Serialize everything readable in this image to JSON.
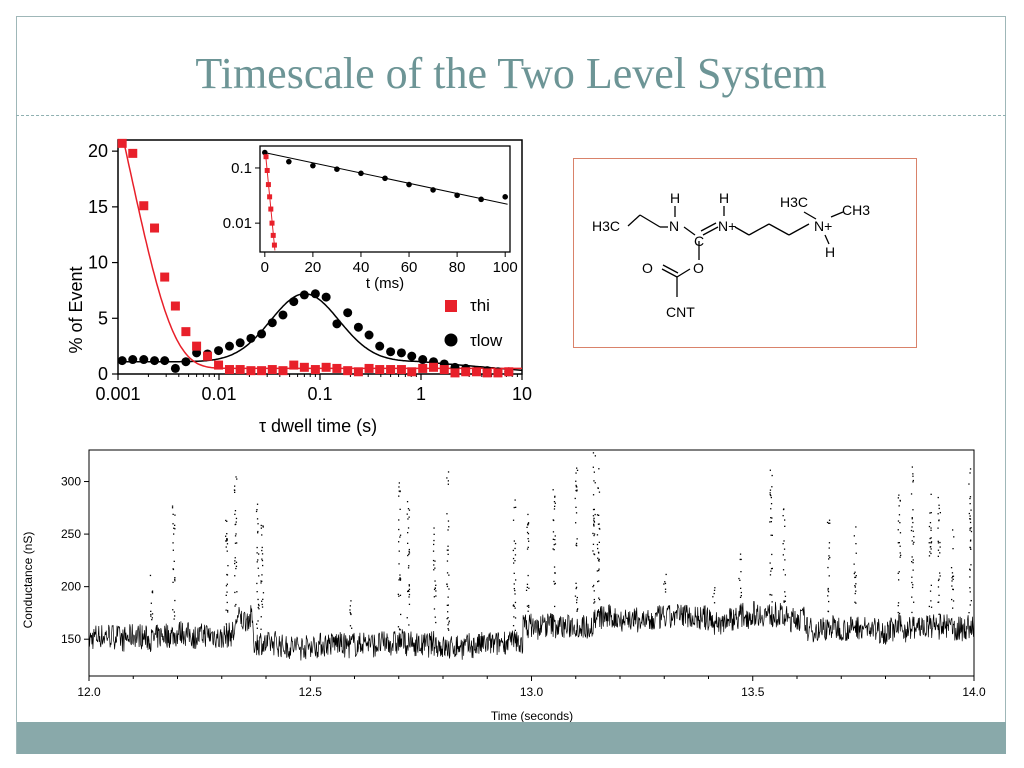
{
  "slide": {
    "title": "Timescale of the Two Level System"
  },
  "colors": {
    "title": "#6d9596",
    "footer": "#89a9aa",
    "tau_hi": "#e8202a",
    "tau_low": "#000000",
    "molecule_border": "#d9826a"
  },
  "molecule": {
    "labels": [
      "H",
      "H3C",
      "N",
      "C",
      "H",
      "N+",
      "H3C",
      "CH3",
      "N+",
      "H",
      "O",
      "O",
      "CNT"
    ]
  },
  "chart_data": [
    {
      "type": "scatter",
      "id": "dwell-histogram",
      "xlabel": "τ dwell time (s)",
      "ylabel": "% of Event",
      "xscale": "log",
      "xlim": [
        0.001,
        10
      ],
      "ylim": [
        0,
        21
      ],
      "xticks": [
        "0.001",
        "0.01",
        "0.1",
        "1",
        "10"
      ],
      "yticks": [
        "0",
        "5",
        "10",
        "15",
        "20"
      ],
      "legend_position": "right",
      "series": [
        {
          "name": "τhi",
          "marker": "square",
          "x": [
            0.0011,
            0.0014,
            0.0018,
            0.0023,
            0.0029,
            0.0037,
            0.0047,
            0.006,
            0.0077,
            0.0099,
            0.0127,
            0.0162,
            0.0207,
            0.0264,
            0.0337,
            0.043,
            0.055,
            0.07,
            0.09,
            0.115,
            0.147,
            0.188,
            0.24,
            0.306,
            0.39,
            0.5,
            0.64,
            0.81,
            1.04,
            1.33,
            1.7,
            2.17,
            2.77,
            3.54,
            4.52,
            5.78,
            7.4
          ],
          "y": [
            20.7,
            19.8,
            15.1,
            13.1,
            8.7,
            6.1,
            3.8,
            2.5,
            1.6,
            0.8,
            0.4,
            0.4,
            0.3,
            0.3,
            0.4,
            0.3,
            0.8,
            0.6,
            0.4,
            0.6,
            0.5,
            0.3,
            0.2,
            0.5,
            0.4,
            0.4,
            0.4,
            0.2,
            0.5,
            0.6,
            0.4,
            0.1,
            0.2,
            0.2,
            0.1,
            0.1,
            0.2
          ]
        },
        {
          "name": "τlow",
          "marker": "circle",
          "x": [
            0.0011,
            0.0014,
            0.0018,
            0.0023,
            0.0029,
            0.0037,
            0.0047,
            0.006,
            0.0077,
            0.0099,
            0.0127,
            0.0162,
            0.0207,
            0.0264,
            0.0337,
            0.043,
            0.055,
            0.07,
            0.09,
            0.115,
            0.147,
            0.188,
            0.24,
            0.306,
            0.39,
            0.5,
            0.64,
            0.81,
            1.04,
            1.33,
            1.7,
            2.17,
            2.77,
            3.54,
            4.52,
            5.78,
            7.4
          ],
          "y": [
            1.2,
            1.3,
            1.3,
            1.2,
            1.2,
            0.5,
            1.1,
            1.9,
            1.8,
            2.1,
            2.5,
            2.8,
            3.2,
            3.6,
            4.6,
            5.3,
            6.5,
            7.1,
            7.2,
            6.9,
            4.5,
            5.5,
            4.2,
            3.5,
            2.5,
            2.0,
            1.9,
            1.6,
            1.3,
            1.1,
            0.9,
            0.6,
            0.5,
            0.3,
            0.3,
            0.2,
            0.2
          ]
        }
      ]
    },
    {
      "type": "scatter",
      "id": "dwell-inset",
      "xlabel": "t (ms)",
      "ylabel": "",
      "yscale": "log",
      "xlim": [
        -2,
        102
      ],
      "ylim": [
        0.003,
        0.25
      ],
      "xticks": [
        "0",
        "20",
        "40",
        "60",
        "80",
        "100"
      ],
      "yticks": [
        "0.01",
        "0.1"
      ],
      "series": [
        {
          "name": "τlow",
          "x": [
            0,
            10,
            20,
            30,
            40,
            50,
            60,
            70,
            80,
            90,
            100
          ],
          "y": [
            0.19,
            0.13,
            0.11,
            0.095,
            0.08,
            0.065,
            0.05,
            0.04,
            0.032,
            0.027,
            0.03
          ]
        },
        {
          "name": "τhi",
          "x": [
            0.5,
            1,
            1.5,
            2,
            2.5,
            3,
            3.5,
            4
          ],
          "y": [
            0.16,
            0.09,
            0.05,
            0.03,
            0.018,
            0.01,
            0.006,
            0.004
          ]
        }
      ]
    },
    {
      "type": "line",
      "id": "conductance-trace",
      "xlabel": "Time (seconds)",
      "ylabel": "Conductance (nS)",
      "xlim": [
        12.0,
        14.0
      ],
      "ylim": [
        115,
        330
      ],
      "xticks": [
        "12.0",
        "12.5",
        "13.0",
        "13.5",
        "14.0"
      ],
      "yticks": [
        "150",
        "200",
        "250",
        "300"
      ],
      "levels": [
        {
          "x": [
            12.0,
            12.33
          ],
          "y": 151
        },
        {
          "x": [
            12.33,
            12.37
          ],
          "y": 168
        },
        {
          "x": [
            12.37,
            12.98
          ],
          "y": 145
        },
        {
          "x": [
            12.98,
            13.14
          ],
          "y": 162
        },
        {
          "x": [
            13.14,
            13.62
          ],
          "y": 170
        },
        {
          "x": [
            13.62,
            14.0
          ],
          "y": 160
        }
      ],
      "spikes": [
        {
          "x": 12.14,
          "top": 220
        },
        {
          "x": 12.19,
          "top": 280
        },
        {
          "x": 12.31,
          "top": 290
        },
        {
          "x": 12.33,
          "top": 305
        },
        {
          "x": 12.38,
          "top": 280
        },
        {
          "x": 12.39,
          "top": 270
        },
        {
          "x": 12.59,
          "top": 200
        },
        {
          "x": 12.7,
          "top": 300
        },
        {
          "x": 12.72,
          "top": 295
        },
        {
          "x": 12.78,
          "top": 265
        },
        {
          "x": 12.81,
          "top": 310
        },
        {
          "x": 12.96,
          "top": 295
        },
        {
          "x": 12.99,
          "top": 280
        },
        {
          "x": 13.05,
          "top": 295
        },
        {
          "x": 13.1,
          "top": 315
        },
        {
          "x": 13.14,
          "top": 330
        },
        {
          "x": 13.15,
          "top": 320
        },
        {
          "x": 13.3,
          "top": 215
        },
        {
          "x": 13.41,
          "top": 210
        },
        {
          "x": 13.47,
          "top": 235
        },
        {
          "x": 13.54,
          "top": 312
        },
        {
          "x": 13.57,
          "top": 275
        },
        {
          "x": 13.67,
          "top": 265
        },
        {
          "x": 13.73,
          "top": 260
        },
        {
          "x": 13.83,
          "top": 290
        },
        {
          "x": 13.86,
          "top": 320
        },
        {
          "x": 13.9,
          "top": 295
        },
        {
          "x": 13.92,
          "top": 295
        },
        {
          "x": 13.95,
          "top": 255
        },
        {
          "x": 13.99,
          "top": 325
        }
      ]
    }
  ]
}
